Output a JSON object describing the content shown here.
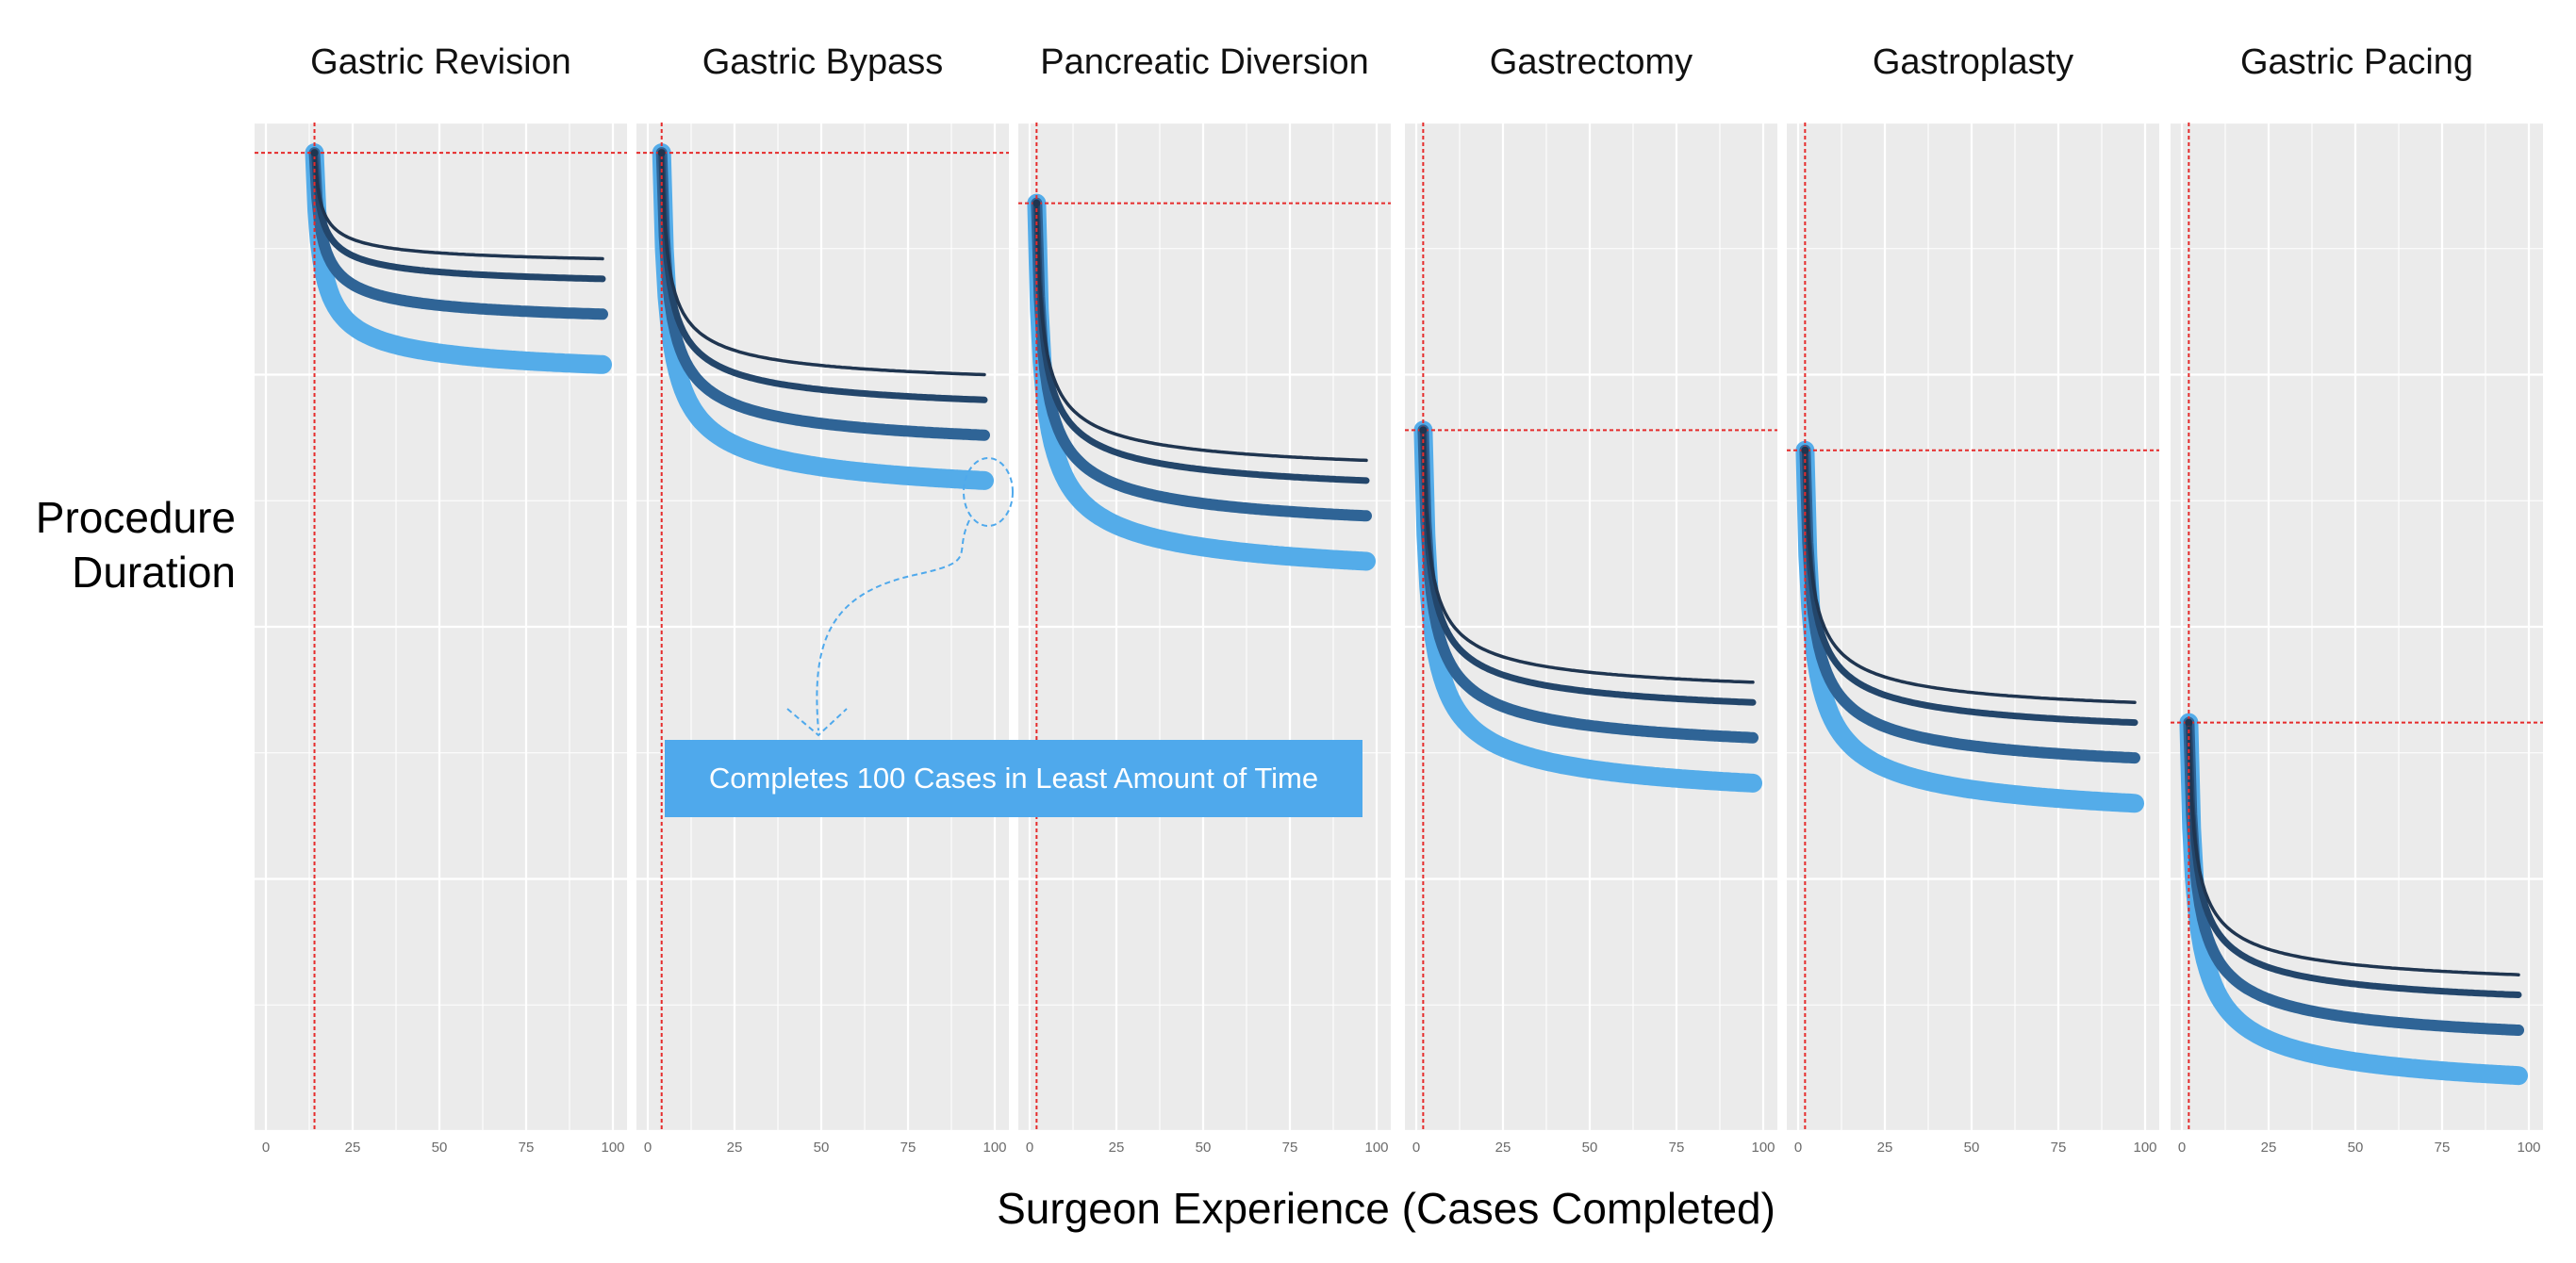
{
  "chart_data": {
    "type": "line",
    "ylabel": "Procedure Duration",
    "xlabel": "Surgeon Experience (Cases Completed)",
    "x_ticks": [
      "0",
      "25",
      "50",
      "75",
      "100"
    ],
    "xlim": [
      0,
      100
    ],
    "ylim": [
      0,
      100
    ],
    "grid": true,
    "annotation": {
      "text": "Completes 100 Cases in Least Amount of Time",
      "panel": "Gastric Bypass"
    },
    "series_colors": [
      "#1f3550",
      "#23466b",
      "#2f6496",
      "#54ace9"
    ],
    "reference_line_color": "#e52b2b",
    "panels": [
      {
        "title": "Gastric Revision",
        "start_x": 14,
        "start_y": 97,
        "ends": [
          86.5,
          84.5,
          81,
          76
        ]
      },
      {
        "title": "Gastric Bypass",
        "start_x": 4,
        "start_y": 97,
        "ends": [
          75,
          72.5,
          69,
          64.5
        ]
      },
      {
        "title": "Pancreatic Diversion",
        "start_x": 2,
        "start_y": 92,
        "ends": [
          66.5,
          64.5,
          61,
          56.5
        ]
      },
      {
        "title": "Gastrectomy",
        "start_x": 2,
        "start_y": 69.5,
        "ends": [
          44.5,
          42.5,
          39,
          34.5
        ]
      },
      {
        "title": "Gastroplasty",
        "start_x": 2,
        "start_y": 67.5,
        "ends": [
          42.5,
          40.5,
          37,
          32.5
        ]
      },
      {
        "title": "Gastric Pacing",
        "start_x": 2,
        "start_y": 40.5,
        "ends": [
          15.5,
          13.5,
          10,
          5.5
        ]
      }
    ]
  }
}
